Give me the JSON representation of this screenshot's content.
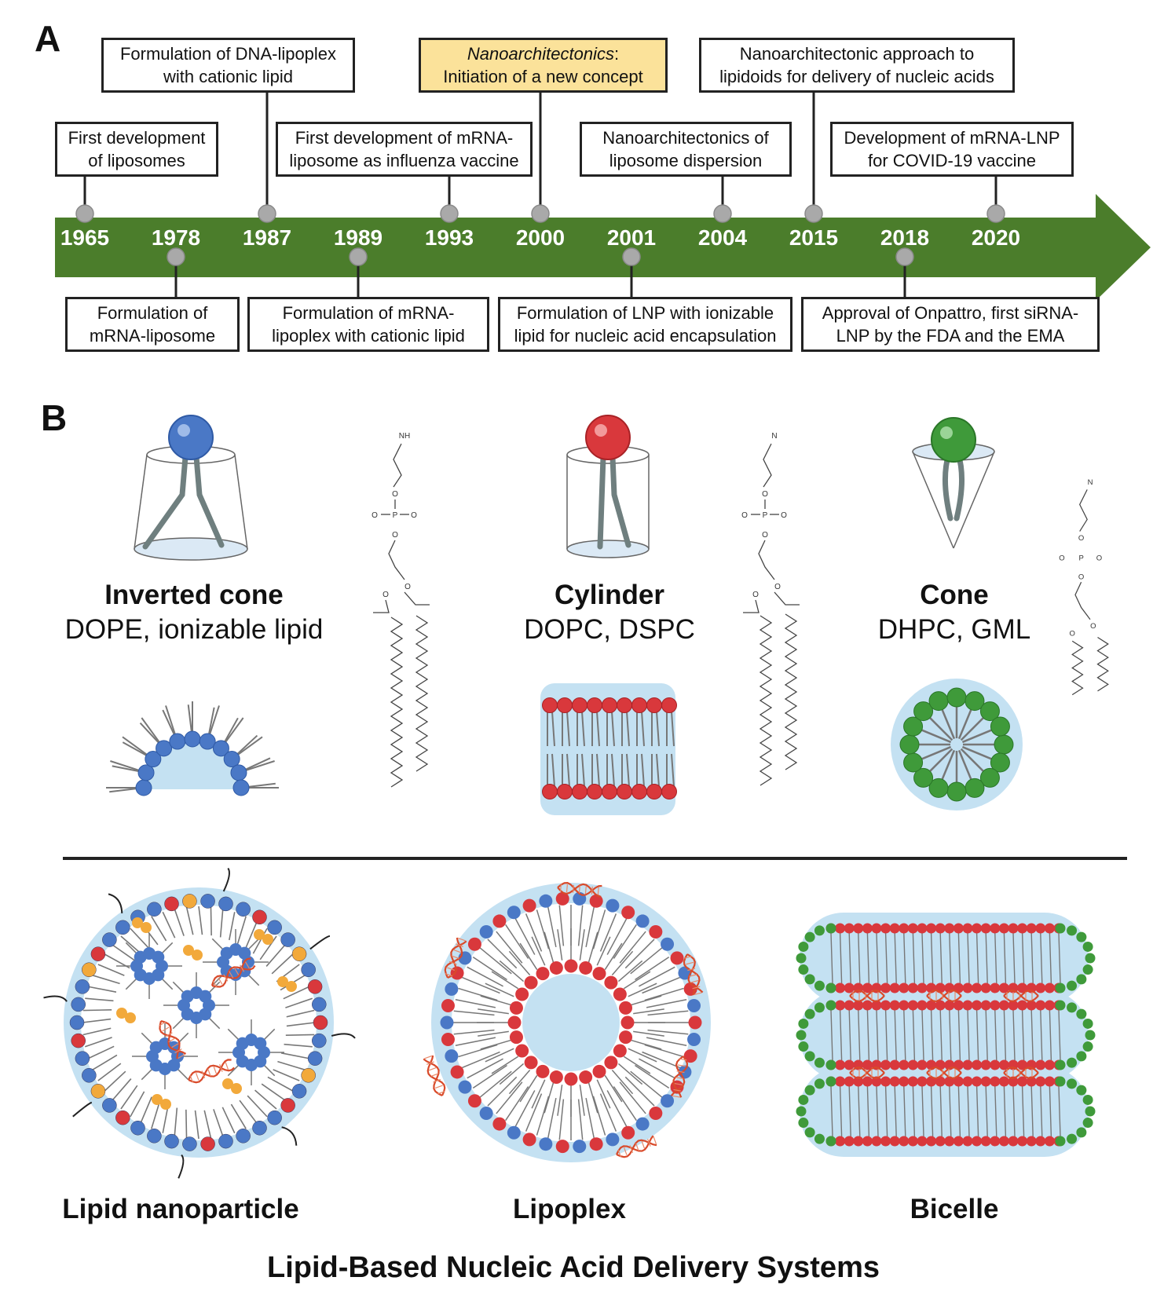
{
  "panel_a_label": "A",
  "panel_b_label": "B",
  "timeline": {
    "years": [
      "1965",
      "1978",
      "1987",
      "1989",
      "1993",
      "2000",
      "2001",
      "2004",
      "2015",
      "2018",
      "2020"
    ],
    "events": [
      {
        "id": "e1965",
        "line1": "First development",
        "line2": "of liposomes"
      },
      {
        "id": "e1978",
        "line1": "Formulation of",
        "line2": "mRNA-liposome"
      },
      {
        "id": "e1987",
        "line1": "Formulation of DNA-lipoplex",
        "line2": "with cationic lipid"
      },
      {
        "id": "e1989",
        "line1": "Formulation of mRNA-",
        "line2": "lipoplex with cationic lipid"
      },
      {
        "id": "e1993",
        "line1": "First development of mRNA-",
        "line2": "liposome as influenza vaccine"
      },
      {
        "id": "e2000",
        "line1_italic": "Nanoarchitectonics",
        "line1_suffix": ":",
        "line2": "Initiation of a new concept"
      },
      {
        "id": "e2001",
        "line1": "Formulation of LNP with ionizable",
        "line2": "lipid for nucleic acid encapsulation"
      },
      {
        "id": "e2004",
        "line1": "Nanoarchitectonics of",
        "line2": "liposome dispersion"
      },
      {
        "id": "e2015",
        "line1": "Nanoarchitectonic approach to",
        "line2": "lipidoids for delivery of nucleic acids"
      },
      {
        "id": "e2018",
        "line1": "Approval of Onpattro, first siRNA-",
        "line2": "LNP by the FDA and the EMA"
      },
      {
        "id": "e2020",
        "line1": "Development of mRNA-LNP",
        "line2": "for COVID-19 vaccine"
      }
    ]
  },
  "shapes": [
    {
      "name": "Inverted cone",
      "lipids": "DOPE, ionizable lipid"
    },
    {
      "name": "Cylinder",
      "lipids": "DOPC, DSPC"
    },
    {
      "name": "Cone",
      "lipids": "DHPC, GML"
    }
  ],
  "chem_labels": {
    "amine": "NH",
    "trimethyl": "N",
    "o": "O",
    "p": "P"
  },
  "systems": [
    "Lipid nanoparticle",
    "Lipoplex",
    "Bicelle"
  ],
  "main_title": "Lipid-Based Nucleic Acid Delivery Systems",
  "colors": {
    "arrow": "#4b7d2b",
    "highlight": "#fbe29a",
    "blue": "#4a78c6",
    "red": "#d9383c",
    "green": "#3f9a3a",
    "water": "#c4e1f2",
    "orange": "#f2a93b",
    "tail": "#777777",
    "dna": "#d94a2a"
  }
}
